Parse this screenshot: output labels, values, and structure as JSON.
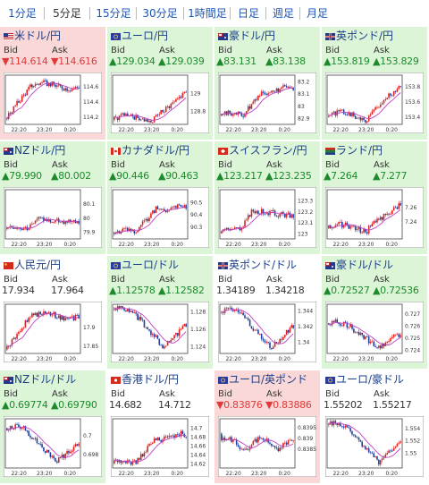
{
  "tabs": [
    {
      "label": "1分足",
      "active": false
    },
    {
      "label": "5分足",
      "active": true
    },
    {
      "label": "15分足",
      "active": false
    },
    {
      "label": "30分足",
      "active": false
    },
    {
      "label": "1時間足",
      "active": false
    },
    {
      "label": "日足",
      "active": false
    },
    {
      "label": "週足",
      "active": false
    },
    {
      "label": "月足",
      "active": false
    }
  ],
  "colors": {
    "up_bg": "#dcf5d6",
    "down_bg": "#fbd8d8",
    "neutral_bg": "#ffffff",
    "up": "#1e8a2e",
    "down": "#e03a3a",
    "neutral": "#333333",
    "candle_up": "#e02020",
    "candle_down": "#1f3f9c",
    "ma": "#c040c0",
    "tab_link": "#1a55b8"
  },
  "labels": {
    "bid": "Bid",
    "ask": "Ask"
  },
  "x_ticks": [
    "22:20",
    "23:20",
    "0:20"
  ],
  "pairs": [
    {
      "name": "米ドル/円",
      "flag": "us",
      "dir": "down",
      "bid": "▼114.614",
      "ask": "▼114.616",
      "chart_data": {
        "type": "candlestick",
        "ylim": [
          114.1,
          114.75
        ],
        "yticks": [
          "114.6",
          "114.4",
          "114.2"
        ],
        "start": 114.18,
        "end": 114.61,
        "shape": "rise_early"
      }
    },
    {
      "name": "ユーロ/円",
      "flag": "eu",
      "dir": "up",
      "bid": "▲129.034",
      "ask": "▲129.039",
      "chart_data": {
        "type": "candlestick",
        "ylim": [
          128.65,
          129.2
        ],
        "yticks": [
          "129",
          "128.8"
        ],
        "start": 128.7,
        "end": 129.03,
        "shape": "rise_late"
      }
    },
    {
      "name": "豪ドル/円",
      "flag": "au",
      "dir": "up",
      "bid": "▲83.131",
      "ask": "▲83.138",
      "chart_data": {
        "type": "candlestick",
        "ylim": [
          82.85,
          83.25
        ],
        "yticks": [
          "83.2",
          "83.1",
          "83",
          "82.9"
        ],
        "start": 82.92,
        "end": 83.13,
        "shape": "rise_mid"
      }
    },
    {
      "name": "英ポンド/円",
      "flag": "gb",
      "dir": "up",
      "bid": "▲153.819",
      "ask": "▲153.829",
      "chart_data": {
        "type": "candlestick",
        "ylim": [
          153.3,
          153.95
        ],
        "yticks": [
          "153.8",
          "153.6",
          "153.4"
        ],
        "start": 153.4,
        "end": 153.82,
        "shape": "rise_late"
      }
    },
    {
      "name": "NZドル/円",
      "flag": "nz",
      "dir": "up",
      "bid": "▲79.990",
      "ask": "▲80.002",
      "chart_data": {
        "type": "candlestick",
        "ylim": [
          79.85,
          80.2
        ],
        "yticks": [
          "80.1",
          "80",
          "79.9"
        ],
        "start": 79.92,
        "end": 79.99,
        "shape": "spike_mid"
      }
    },
    {
      "name": "カナダドル/円",
      "flag": "ca",
      "dir": "up",
      "bid": "▲90.446",
      "ask": "▲90.463",
      "chart_data": {
        "type": "candlestick",
        "ylim": [
          90.2,
          90.6
        ],
        "yticks": [
          "90.5",
          "90.4",
          "90.3"
        ],
        "start": 90.25,
        "end": 90.45,
        "shape": "rise_mid"
      }
    },
    {
      "name": "スイスフラン/円",
      "flag": "ch",
      "dir": "up",
      "bid": "▲123.217",
      "ask": "▲123.235",
      "chart_data": {
        "type": "candlestick",
        "ylim": [
          122.95,
          123.4
        ],
        "yticks": [
          "123.3",
          "123.2",
          "123.1",
          "123"
        ],
        "start": 123.0,
        "end": 123.22,
        "shape": "spike_mid"
      }
    },
    {
      "name": "ランド/円",
      "flag": "za",
      "dir": "up",
      "bid": "▲7.264",
      "ask": "▲7.277",
      "chart_data": {
        "type": "candlestick",
        "ylim": [
          7.215,
          7.285
        ],
        "yticks": [
          "7.26",
          "7.24"
        ],
        "start": 7.23,
        "end": 7.265,
        "shape": "rise_late"
      }
    },
    {
      "name": "人民元/円",
      "flag": "cn",
      "dir": "neutral",
      "bid": "17.934",
      "ask": "17.964",
      "chart_data": {
        "type": "candlestick",
        "ylim": [
          17.83,
          17.96
        ],
        "yticks": [
          "17.9",
          "17.85"
        ],
        "start": 17.84,
        "end": 17.93,
        "shape": "rise_early"
      }
    },
    {
      "name": "ユーロ/ドル",
      "flag": "eu",
      "dir": "up",
      "bid": "▲1.12578",
      "ask": "▲1.12582",
      "chart_data": {
        "type": "candlestick",
        "ylim": [
          1.1232,
          1.1288
        ],
        "yticks": [
          "1.128",
          "1.126",
          "1.124"
        ],
        "start": 1.1282,
        "end": 1.1255,
        "shape": "fall_mid"
      }
    },
    {
      "name": "英ポンド/ドル",
      "flag": "gb",
      "dir": "neutral",
      "bid": "1.34189",
      "ask": "1.34218",
      "chart_data": {
        "type": "candlestick",
        "ylim": [
          1.3385,
          1.3448
        ],
        "yticks": [
          "1.344",
          "1.342",
          "1.34"
        ],
        "start": 1.3438,
        "end": 1.3419,
        "shape": "fall_mid"
      }
    },
    {
      "name": "豪ドル/ドル",
      "flag": "au",
      "dir": "up",
      "bid": "▲0.72527",
      "ask": "▲0.72536",
      "chart_data": {
        "type": "candlestick",
        "ylim": [
          0.7237,
          0.7278
        ],
        "yticks": [
          "0.727",
          "0.726",
          "0.725",
          "0.724"
        ],
        "start": 0.7262,
        "end": 0.7253,
        "shape": "fall_mid"
      }
    },
    {
      "name": "NZドル/ドル",
      "flag": "nz",
      "dir": "up",
      "bid": "▲0.69774",
      "ask": "▲0.69790",
      "chart_data": {
        "type": "candlestick",
        "ylim": [
          0.6965,
          0.7018
        ],
        "yticks": [
          "0.7",
          "0.698"
        ],
        "start": 0.7008,
        "end": 0.6977,
        "shape": "fall_mid"
      }
    },
    {
      "name": "香港ドル/円",
      "flag": "hk",
      "dir": "neutral",
      "bid": "14.682",
      "ask": "14.712",
      "chart_data": {
        "type": "candlestick",
        "ylim": [
          14.61,
          14.72
        ],
        "yticks": [
          "14.7",
          "14.68",
          "14.66",
          "14.64",
          "14.62"
        ],
        "start": 14.62,
        "end": 14.68,
        "shape": "rise_mid"
      }
    },
    {
      "name": "ユーロ/英ポンド",
      "flag": "eu",
      "dir": "down",
      "bid": "▼0.83876",
      "ask": "▼0.83886",
      "chart_data": {
        "type": "candlestick",
        "ylim": [
          0.8376,
          0.8399
        ],
        "yticks": [
          "0.8395",
          "0.839",
          "0.8385"
        ],
        "start": 0.8392,
        "end": 0.8388,
        "shape": "flat"
      }
    },
    {
      "name": "ユーロ/豪ドル",
      "flag": "eu",
      "dir": "neutral",
      "bid": "1.55202",
      "ask": "1.55217",
      "chart_data": {
        "type": "candlestick",
        "ylim": [
          1.5475,
          1.5555
        ],
        "yticks": [
          "1.554",
          "1.552",
          "1.55"
        ],
        "start": 1.5545,
        "end": 1.552,
        "shape": "fall_mid"
      }
    }
  ]
}
